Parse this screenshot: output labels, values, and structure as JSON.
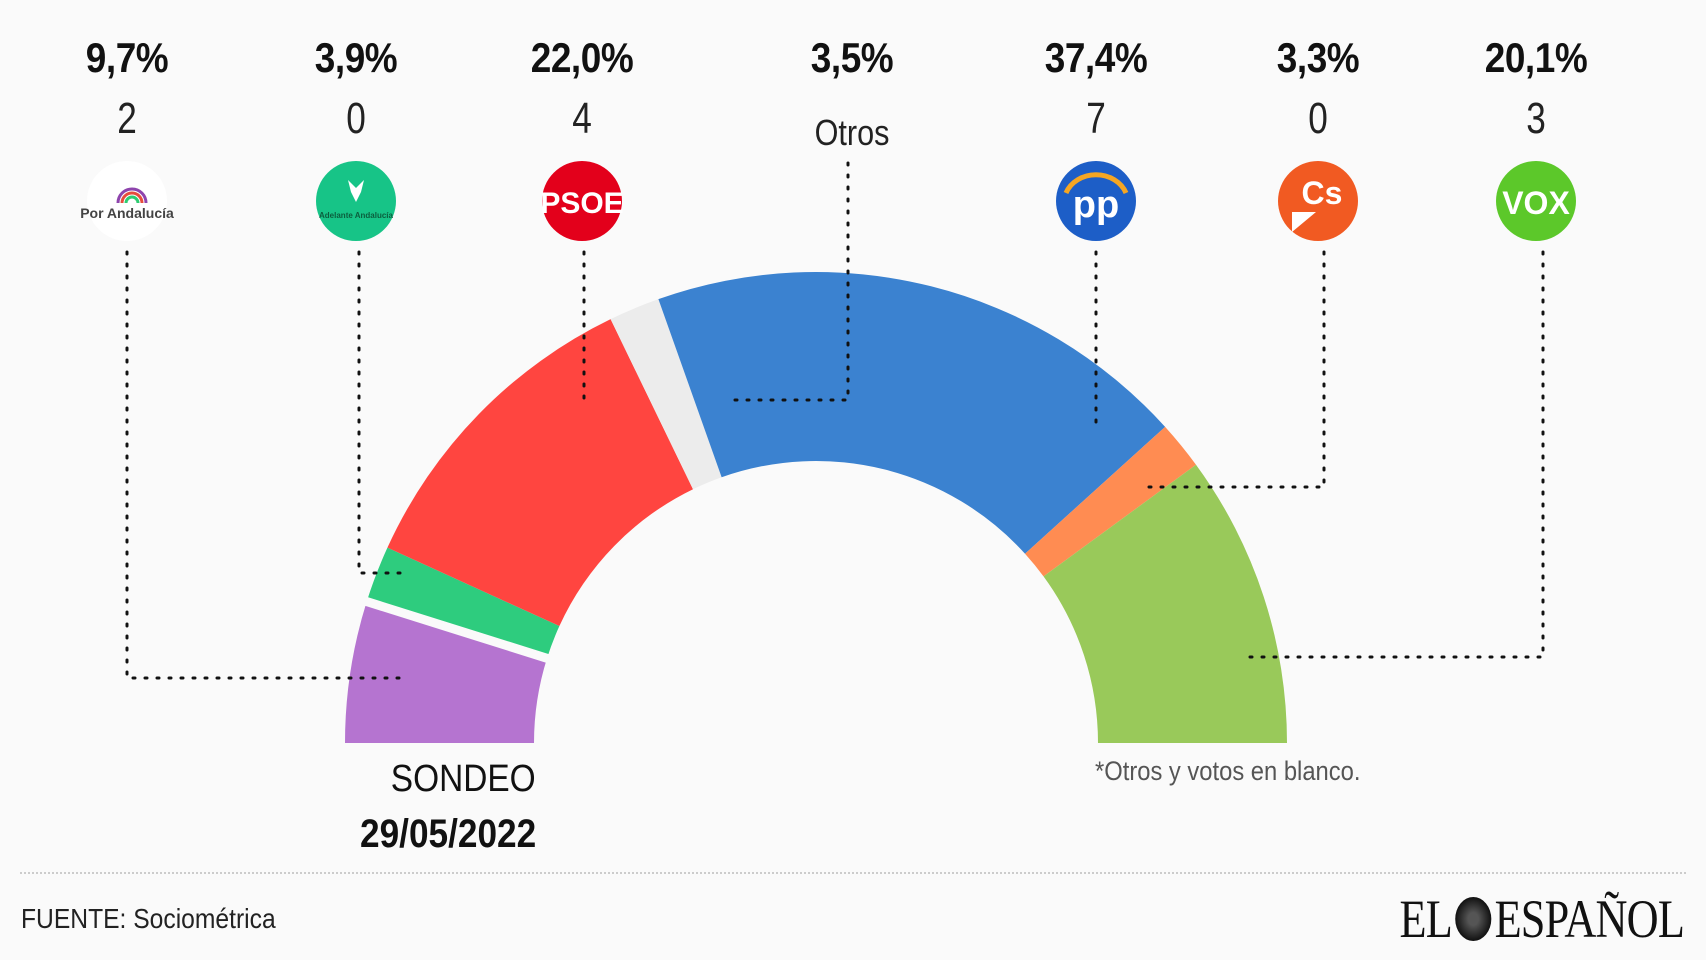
{
  "chart_data": {
    "type": "pie",
    "subtype": "hemicycle",
    "title": "SONDEO 29/05/2022",
    "parties": [
      {
        "name": "Por Andalucía",
        "pct": 9.7,
        "pct_label": "9,7%",
        "seats": "2",
        "color": "#b574d0",
        "logo_color": "#ffffff"
      },
      {
        "name": "Adelante Andalucía",
        "pct": 3.9,
        "pct_label": "3,9%",
        "seats": "0",
        "color": "#2ecc7e",
        "logo_color": "#17c487"
      },
      {
        "name": "PSOE",
        "pct": 22.0,
        "pct_label": "22,0%",
        "seats": "4",
        "color": "#ff4540",
        "logo_color": "#e3001b"
      },
      {
        "name": "Otros",
        "pct": 3.5,
        "pct_label": "3,5%",
        "seats": "Otros",
        "color": "#ececec",
        "logo_color": ""
      },
      {
        "name": "PP",
        "pct": 37.4,
        "pct_label": "37,4%",
        "seats": "7",
        "color": "#3b82d0",
        "logo_color": "#1d5ec7"
      },
      {
        "name": "Cs",
        "pct": 3.3,
        "pct_label": "3,3%",
        "seats": "0",
        "color": "#ff8c52",
        "logo_color": "#f15a22"
      },
      {
        "name": "VOX",
        "pct": 20.1,
        "pct_label": "20,1%",
        "seats": "3",
        "color": "#99c95a",
        "logo_color": "#5cc82a"
      }
    ]
  },
  "logos": {
    "por": "Por Andalucía",
    "adelante": "Adelante Andalucía",
    "psoe": "PSOE",
    "pp": "pp",
    "cs": "Cs",
    "vox": "VOX"
  },
  "labels": {
    "sondeo": "SONDEO",
    "date": "29/05/2022",
    "note": "*Otros y votos en blanco.",
    "source": "FUENTE: Sociométrica",
    "brand_left": "EL",
    "brand_right": "ESPAÑOL"
  }
}
